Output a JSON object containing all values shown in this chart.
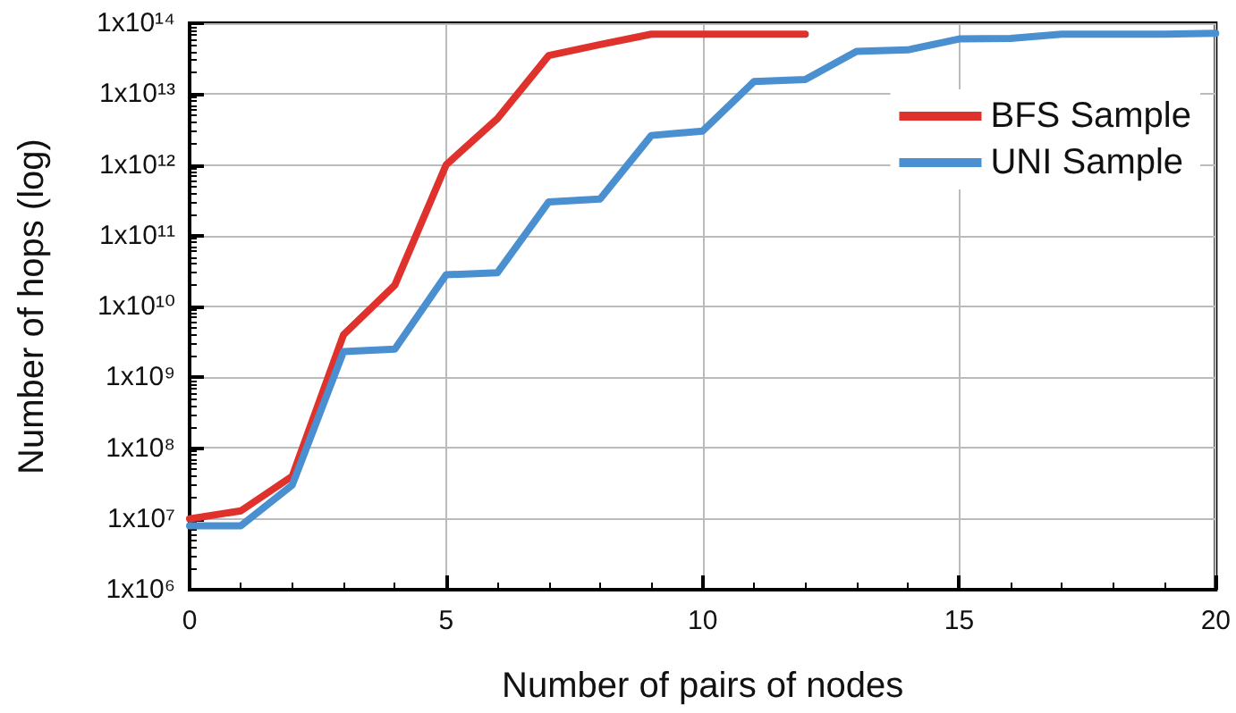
{
  "chart_data": {
    "type": "line",
    "xlabel": "Number of pairs of nodes",
    "ylabel": "Number of hops (log)",
    "x": [
      0,
      1,
      2,
      3,
      4,
      5,
      6,
      7,
      8,
      9,
      10,
      11,
      12,
      13,
      14,
      15,
      16,
      17,
      18,
      19,
      20
    ],
    "series": [
      {
        "name": "BFS Sample",
        "color": "#e0322d",
        "x": [
          0,
          1,
          2,
          3,
          4,
          5,
          6,
          7,
          8,
          9,
          10,
          11,
          12
        ],
        "values": [
          10000000.0,
          13000000.0,
          40000000.0,
          4000000000.0,
          20000000000.0,
          1000000000000.0,
          4500000000000.0,
          35000000000000.0,
          50000000000000.0,
          70000000000000.0,
          70000000000000.0,
          70000000000000.0,
          70000000000000.0
        ]
      },
      {
        "name": "UNI Sample",
        "color": "#4a8fcf",
        "values": [
          8000000.0,
          8000000.0,
          30000000.0,
          2300000000.0,
          2500000000.0,
          28000000000.0,
          30000000000.0,
          300000000000.0,
          330000000000.0,
          2600000000000.0,
          3000000000000.0,
          15000000000000.0,
          16000000000000.0,
          40000000000000.0,
          42000000000000.0,
          60000000000000.0,
          61000000000000.0,
          70000000000000.0,
          70000000000000.0,
          70000000000000.0,
          72000000000000.0
        ]
      }
    ],
    "log": "y",
    "xlim": [
      0,
      20
    ],
    "xticks": [
      0,
      5,
      10,
      15,
      20
    ],
    "ylim": [
      1000000.0,
      100000000000000.0
    ],
    "yticks": [
      {
        "value": 1000000.0,
        "label": "1x10⁶"
      },
      {
        "value": 10000000.0,
        "label": "1x10⁷"
      },
      {
        "value": 100000000.0,
        "label": "1x10⁸"
      },
      {
        "value": 1000000000.0,
        "label": "1x10⁹"
      },
      {
        "value": 10000000000.0,
        "label": "1x10¹⁰"
      },
      {
        "value": 100000000000.0,
        "label": "1x10¹¹"
      },
      {
        "value": 1000000000000.0,
        "label": "1x10¹²"
      },
      {
        "value": 10000000000000.0,
        "label": "1x10¹³"
      },
      {
        "value": 100000000000000.0,
        "label": "1x10¹⁴"
      }
    ],
    "grid": true,
    "legend": "top right",
    "marker": "none",
    "line_style": "solid"
  }
}
